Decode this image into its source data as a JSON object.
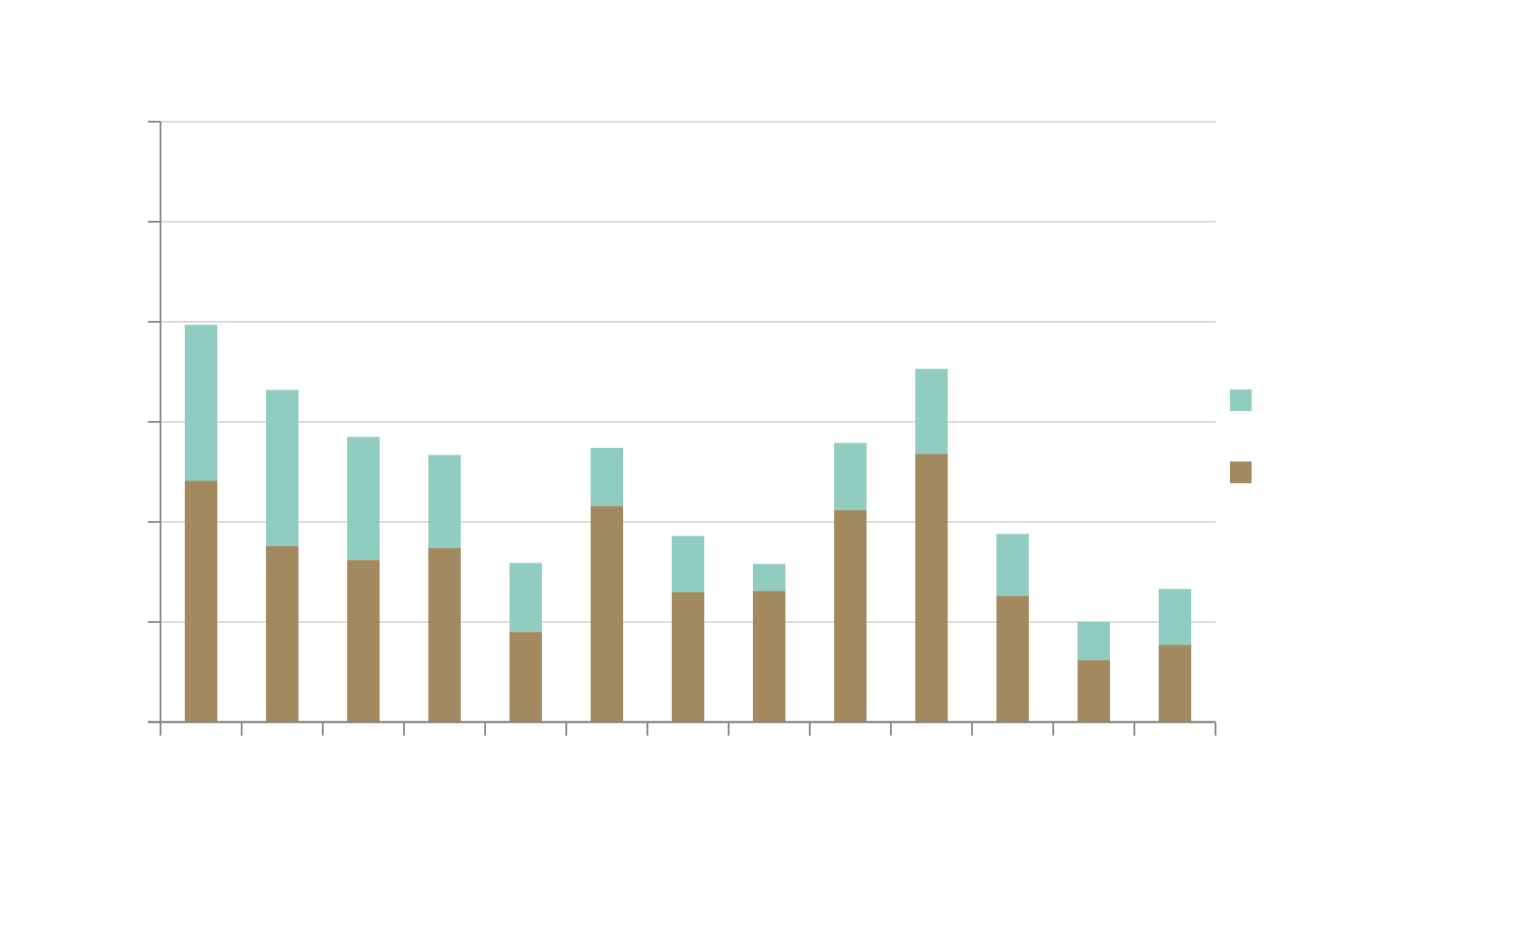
{
  "chart_data": {
    "type": "bar",
    "stacked": true,
    "title": "",
    "xlabel": "",
    "ylabel": "",
    "ylim": [
      0,
      6
    ],
    "yticks": [
      0,
      1,
      2,
      3,
      4,
      5,
      6
    ],
    "grid": true,
    "legend_position": "right",
    "category_count": 13,
    "series": [
      {
        "name": "",
        "color": "#a3895f",
        "values": [
          2.41,
          1.76,
          1.62,
          1.74,
          0.9,
          2.16,
          1.3,
          1.31,
          2.12,
          2.68,
          1.26,
          0.62,
          0.77
        ]
      },
      {
        "name": "",
        "color": "#90cdc0",
        "values": [
          1.56,
          1.56,
          1.23,
          0.93,
          0.69,
          0.58,
          0.56,
          0.27,
          0.67,
          0.85,
          0.62,
          0.38,
          0.56
        ]
      }
    ]
  }
}
